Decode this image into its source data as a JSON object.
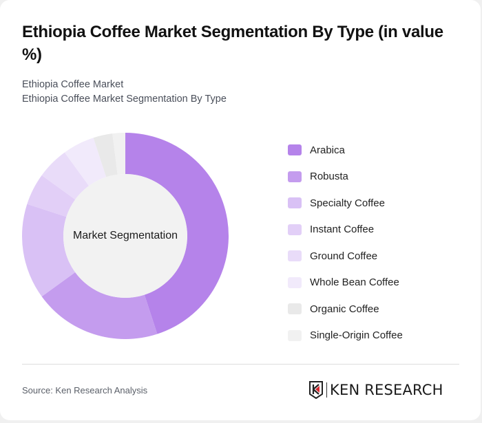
{
  "header": {
    "title": "Ethiopia Coffee Market Segmentation By Type (in value %)",
    "subtitle_line1": "Ethiopia Coffee Market",
    "subtitle_line2": "Ethiopia Coffee Market Segmentation By Type"
  },
  "chart": {
    "center_label": "Market Segmentation"
  },
  "legend": {
    "items": [
      {
        "label": "Arabica",
        "color": "#b583ea"
      },
      {
        "label": "Robusta",
        "color": "#c49cee"
      },
      {
        "label": "Specialty Coffee",
        "color": "#d9c1f5"
      },
      {
        "label": "Instant Coffee",
        "color": "#e2cff7"
      },
      {
        "label": "Ground Coffee",
        "color": "#e9dcf9"
      },
      {
        "label": "Whole Bean Coffee",
        "color": "#f1eafb"
      },
      {
        "label": "Organic Coffee",
        "color": "#e9e9e9"
      },
      {
        "label": "Single-Origin Coffee",
        "color": "#f1f1f1"
      }
    ]
  },
  "footer": {
    "source": "Source: Ken Research Analysis",
    "logo_text": "KEN RESEARCH"
  },
  "chart_data": {
    "type": "pie",
    "subtype": "donut",
    "title": "Ethiopia Coffee Market Segmentation By Type (in value %)",
    "subtitle": [
      "Ethiopia Coffee Market",
      "Ethiopia Coffee Market Segmentation By Type"
    ],
    "center_label": "Market Segmentation",
    "categories": [
      "Arabica",
      "Robusta",
      "Specialty Coffee",
      "Instant Coffee",
      "Ground Coffee",
      "Whole Bean Coffee",
      "Organic Coffee",
      "Single-Origin Coffee"
    ],
    "values": [
      45,
      20,
      15,
      5,
      5,
      5,
      3,
      2
    ],
    "colors": [
      "#b583ea",
      "#c49cee",
      "#d9c1f5",
      "#e2cff7",
      "#e9dcf9",
      "#f1eafb",
      "#e9e9e9",
      "#f1f1f1"
    ],
    "legend_position": "right",
    "source": "Source: Ken Research Analysis"
  }
}
